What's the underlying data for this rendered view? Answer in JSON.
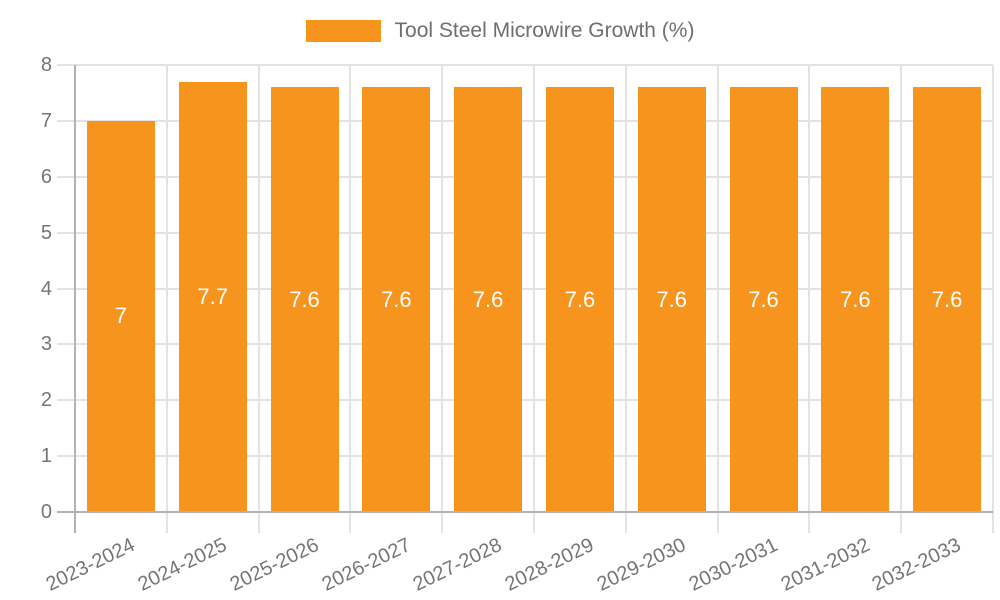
{
  "chart_data": {
    "type": "bar",
    "title": "Tool Steel Microwire Growth (%)",
    "categories": [
      "2023-2024",
      "2024-2025",
      "2025-2026",
      "2026-2027",
      "2027-2028",
      "2028-2029",
      "2029-2030",
      "2030-2031",
      "2031-2032",
      "2032-2033"
    ],
    "values": [
      7,
      7.7,
      7.6,
      7.6,
      7.6,
      7.6,
      7.6,
      7.6,
      7.6,
      7.6
    ],
    "value_labels": [
      "7",
      "7.7",
      "7.6",
      "7.6",
      "7.6",
      "7.6",
      "7.6",
      "7.6",
      "7.6",
      "7.6"
    ],
    "xlabel": "",
    "ylabel": "",
    "ylim": [
      0,
      8
    ],
    "y_ticks": [
      0,
      1,
      2,
      3,
      4,
      5,
      6,
      7,
      8
    ],
    "grid": true,
    "legend_position": "top",
    "colors": {
      "bar": "#F7941E",
      "grid": "#E3E3E3",
      "axis": "#B2B2B2",
      "tick_text": "#757575",
      "legend_text": "#6E6E6E",
      "value_text": "#FFFFFF",
      "background": "#FFFFFF"
    }
  }
}
